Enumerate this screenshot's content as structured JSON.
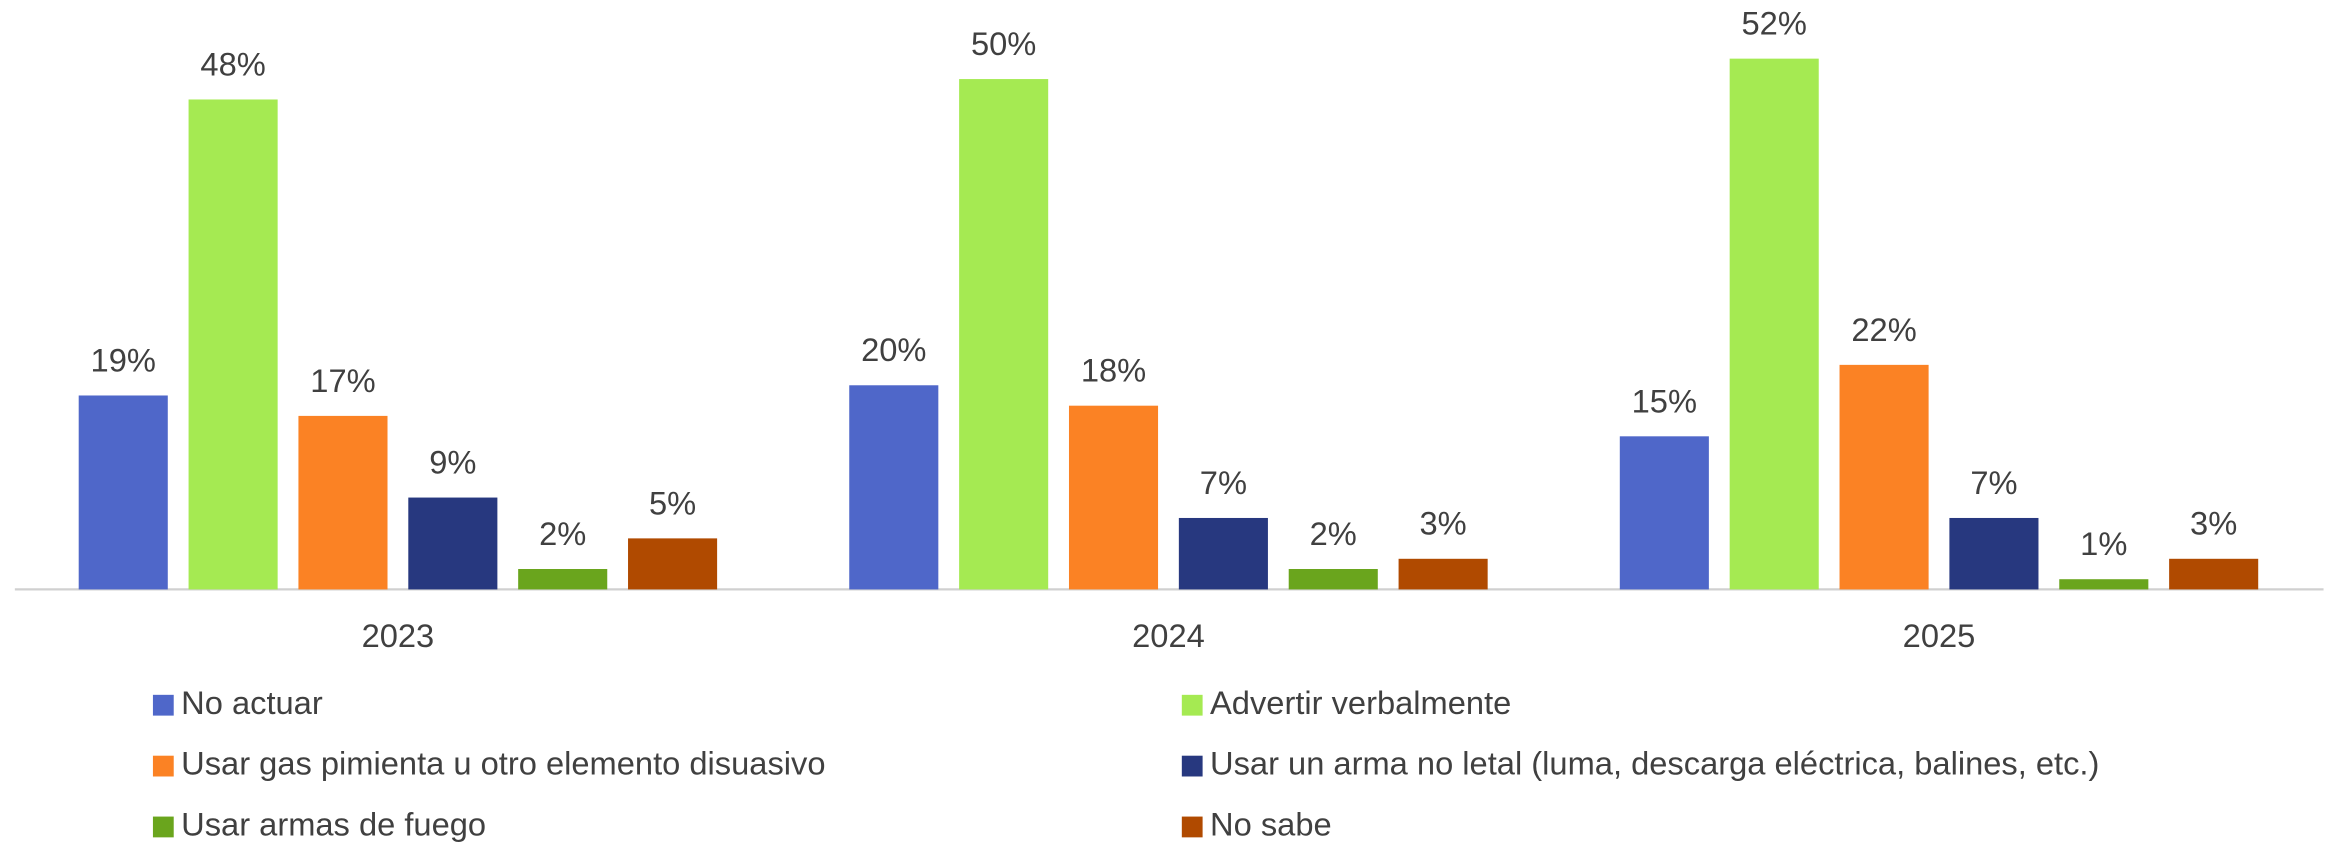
{
  "chart_data": {
    "type": "bar",
    "categories": [
      "2023",
      "2024",
      "2025"
    ],
    "series": [
      {
        "name": "No actuar",
        "color": "#4f67c9",
        "values": [
          19,
          20,
          15
        ],
        "value_labels": [
          "19%",
          "20%",
          "15%"
        ]
      },
      {
        "name": "Advertir verbalmente",
        "color": "#a5ea52",
        "values": [
          48,
          50,
          52
        ],
        "value_labels": [
          "48%",
          "50%",
          "52%"
        ]
      },
      {
        "name": "Usar gas pimienta u otro elemento disuasivo",
        "color": "#fb8224",
        "values": [
          17,
          18,
          22
        ],
        "value_labels": [
          "17%",
          "18%",
          "22%"
        ]
      },
      {
        "name": "Usar un arma no letal (luma, descarga eléctrica, balines, etc.)",
        "color": "#27387f",
        "values": [
          9,
          7,
          7
        ],
        "value_labels": [
          "9%",
          "7%",
          "7%"
        ]
      },
      {
        "name": "Usar armas de fuego",
        "color": "#6aa51d",
        "values": [
          2,
          2,
          1
        ],
        "value_labels": [
          "2%",
          "2%",
          "1%"
        ]
      },
      {
        "name": "No sabe",
        "color": "#b04a00",
        "values": [
          5,
          3,
          3
        ],
        "value_labels": [
          "5%",
          "3%",
          "3%"
        ]
      }
    ],
    "legend": "bottom"
  }
}
